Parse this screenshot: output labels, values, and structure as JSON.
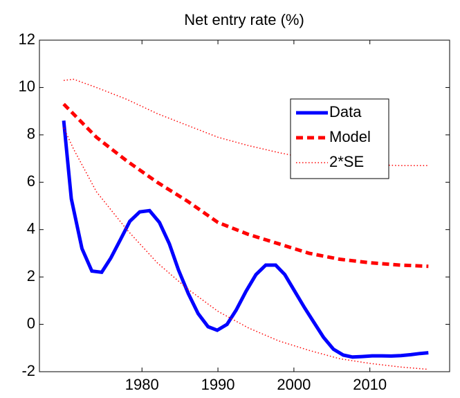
{
  "chart_data": {
    "type": "line",
    "title": "Net entry rate (%)",
    "xlim": [
      1966.5,
      2020.5
    ],
    "xticks": [
      1980,
      1990,
      2000,
      2010
    ],
    "ylim": [
      -2,
      12
    ],
    "yticks": [
      -2,
      0,
      2,
      4,
      6,
      8,
      10,
      12
    ],
    "legend": "upper-right",
    "series": [
      {
        "name": "Data",
        "color": "#0000ff",
        "style": "solid",
        "x": [
          1969.7,
          1970.7,
          1972.1,
          1973.4,
          1974.7,
          1975.9,
          1977.2,
          1978.4,
          1979.7,
          1981.0,
          1982.3,
          1983.6,
          1984.8,
          1986.1,
          1987.4,
          1988.7,
          1989.9,
          1991.2,
          1992.4,
          1993.7,
          1995.0,
          1996.3,
          1997.6,
          1998.8,
          2000.1,
          2001.4,
          2002.6,
          2003.9,
          2005.2,
          2006.5,
          2007.7,
          2009.0,
          2010.3,
          2011.6,
          2012.8,
          2014.1,
          2015.4,
          2016.6,
          2017.7
        ],
        "values": [
          8.6,
          5.3,
          3.2,
          2.25,
          2.2,
          2.8,
          3.6,
          4.35,
          4.75,
          4.8,
          4.3,
          3.4,
          2.3,
          1.3,
          0.45,
          -0.1,
          -0.25,
          0.0,
          0.6,
          1.4,
          2.1,
          2.5,
          2.5,
          2.1,
          1.4,
          0.7,
          0.1,
          -0.55,
          -1.05,
          -1.3,
          -1.38,
          -1.36,
          -1.33,
          -1.33,
          -1.34,
          -1.32,
          -1.28,
          -1.23,
          -1.2
        ]
      },
      {
        "name": "Model",
        "color": "#ff0000",
        "style": "dashed",
        "x": [
          1969.7,
          1974,
          1978,
          1982,
          1986,
          1990,
          1994,
          1998,
          2002,
          2006,
          2010,
          2014,
          2017.7
        ],
        "values": [
          9.3,
          7.9,
          6.9,
          6.0,
          5.2,
          4.3,
          3.8,
          3.4,
          3.0,
          2.75,
          2.6,
          2.5,
          2.45
        ]
      },
      {
        "name": "2*SE",
        "color": "#ff0000",
        "style": "dotted",
        "x": [
          1969.7,
          1971,
          1974,
          1978,
          1982,
          1986,
          1990,
          1994,
          1998,
          2002,
          2006,
          2010,
          2014,
          2017.7
        ],
        "values": [
          10.3,
          10.35,
          10.0,
          9.5,
          8.9,
          8.4,
          7.9,
          7.55,
          7.25,
          7.0,
          6.85,
          6.75,
          6.7,
          6.7
        ],
        "lower_values": [
          8.3,
          7.4,
          5.6,
          4.0,
          2.6,
          1.5,
          0.55,
          -0.15,
          -0.7,
          -1.1,
          -1.45,
          -1.65,
          -1.8,
          -1.9
        ]
      }
    ]
  }
}
